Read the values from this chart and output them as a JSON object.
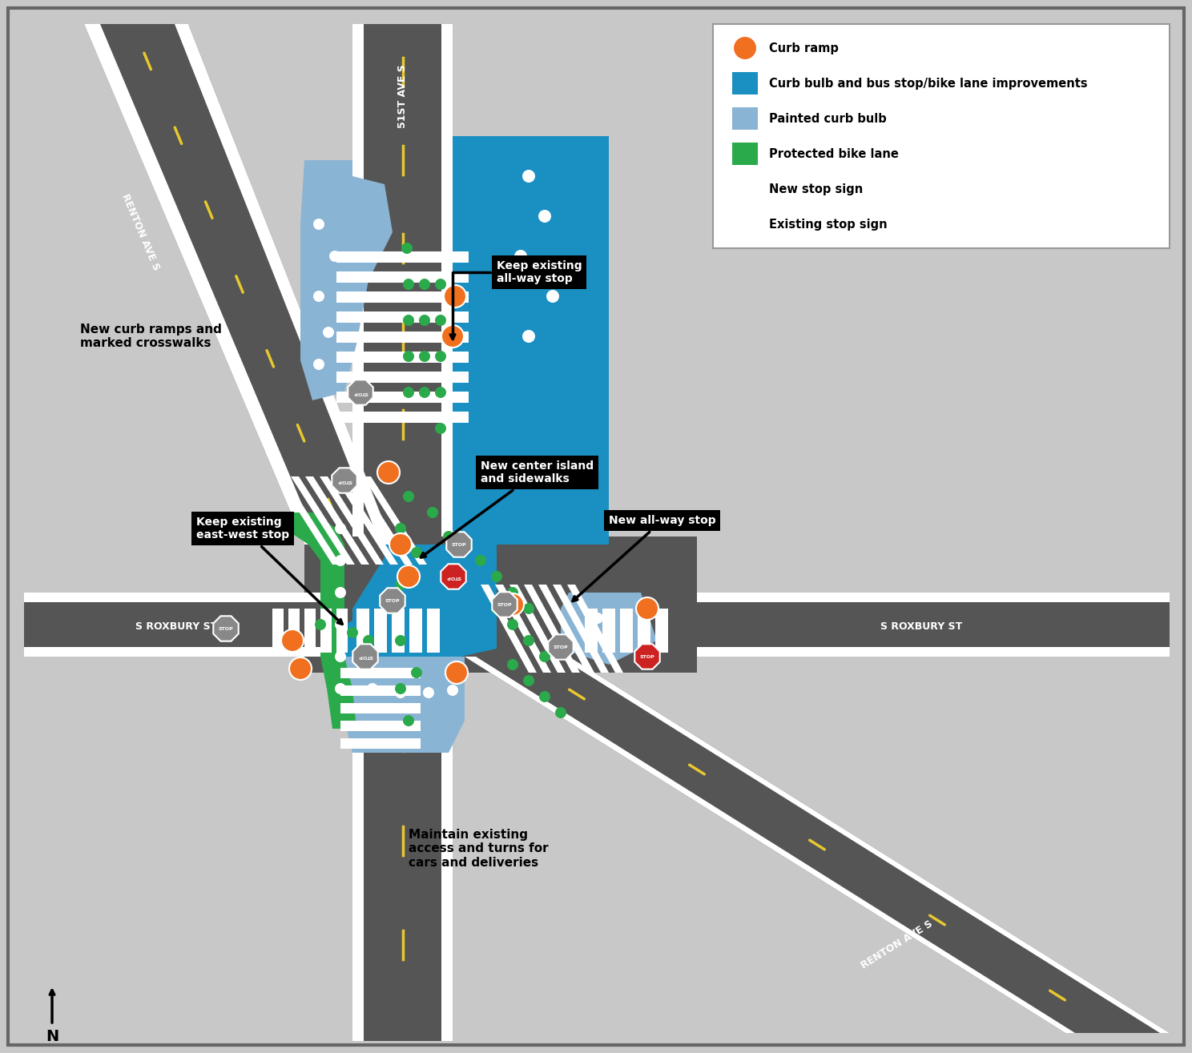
{
  "bg_color": "#c8c8c8",
  "road_color": "#555555",
  "white": "#ffffff",
  "curb_bulb_blue": "#1a8fc1",
  "painted_curb_blue": "#8ab4d4",
  "bike_lane_green": "#2aaa4a",
  "orange_ramp": "#f07020",
  "yellow_dash": "#e8c830",
  "road_edge_white": "#ffffff",
  "legend_items": [
    {
      "label": "Curb ramp",
      "type": "circle",
      "color": "#f07020"
    },
    {
      "label": "Curb bulb and bus stop/bike lane improvements",
      "type": "rect",
      "color": "#1a8fc1"
    },
    {
      "label": "Painted curb bulb",
      "type": "rect",
      "color": "#8ab4d4"
    },
    {
      "label": "Protected bike lane",
      "type": "rect",
      "color": "#2aaa4a"
    },
    {
      "label": "New stop sign",
      "type": "stop_red"
    },
    {
      "label": "Existing stop sign",
      "type": "stop_gray"
    }
  ]
}
